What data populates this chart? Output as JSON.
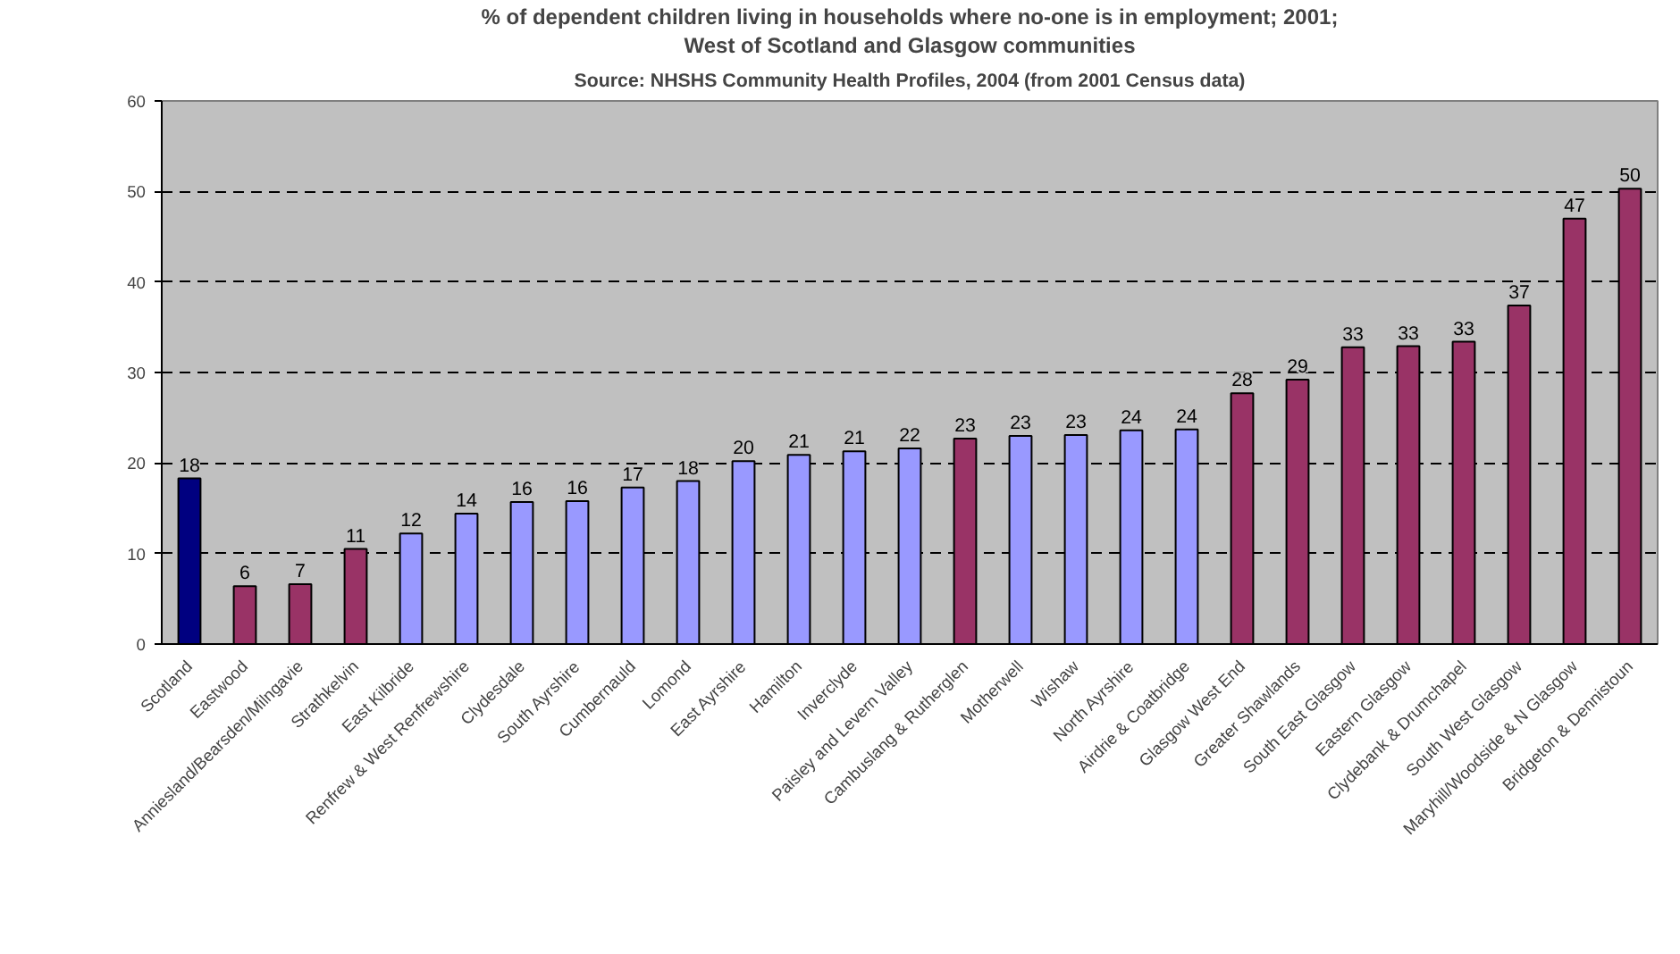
{
  "chart_data": {
    "type": "bar",
    "title": "% of dependent children living in households where no-one is in employment; 2001;",
    "subtitle": "West of Scotland and Glasgow communities",
    "annotations": [
      "Source: NHSHS Community Health Profiles, 2004 (from 2001 Census data)"
    ],
    "categories": [
      "Scotland",
      "Eastwood",
      "Anniesland/Bearsden/Milngavie",
      "Strathkelvin",
      "East Kilbride",
      "Renfrew & West Renfrewshire",
      "Clydesdale",
      "South Ayrshire",
      "Cumbernauld",
      "Lomond",
      "East Ayrshire",
      "Hamilton",
      "Inverclyde",
      "Paisley and Levern Valley",
      "Cambuslang & Rutherglen",
      "Motherwell",
      "Wishaw",
      "North Ayrshire",
      "Airdrie & Coatbridge",
      "Glasgow West End",
      "Greater Shawlands",
      "South East Glasgow",
      "Eastern Glasgow",
      "Clydebank & Drumchapel",
      "South West Glasgow",
      "Maryhill/Woodside & N Glasgow",
      "Bridgeton & Dennistoun"
    ],
    "values": [
      18.3,
      6.4,
      6.6,
      10.5,
      12.2,
      14.4,
      15.7,
      15.8,
      17.3,
      18.0,
      20.2,
      20.9,
      21.3,
      21.6,
      22.7,
      23.0,
      23.1,
      23.6,
      23.7,
      27.7,
      29.2,
      32.8,
      32.9,
      33.4,
      37.4,
      47.0,
      50.3
    ],
    "value_labels": [
      "18",
      "6",
      "7",
      "11",
      "12",
      "14",
      "16",
      "16",
      "17",
      "18",
      "20",
      "21",
      "21",
      "22",
      "23",
      "23",
      "23",
      "24",
      "24",
      "28",
      "29",
      "33",
      "33",
      "33",
      "37",
      "47",
      "50"
    ],
    "colors": [
      "#000080",
      "#993366",
      "#993366",
      "#993366",
      "#9999ff",
      "#9999ff",
      "#9999ff",
      "#9999ff",
      "#9999ff",
      "#9999ff",
      "#9999ff",
      "#9999ff",
      "#9999ff",
      "#9999ff",
      "#993366",
      "#9999ff",
      "#9999ff",
      "#9999ff",
      "#9999ff",
      "#993366",
      "#993366",
      "#993366",
      "#993366",
      "#993366",
      "#993366",
      "#993366",
      "#993366"
    ],
    "ylim": [
      0,
      60
    ],
    "yticks": [
      0,
      10,
      20,
      30,
      40,
      50,
      60
    ],
    "grid": "y"
  }
}
